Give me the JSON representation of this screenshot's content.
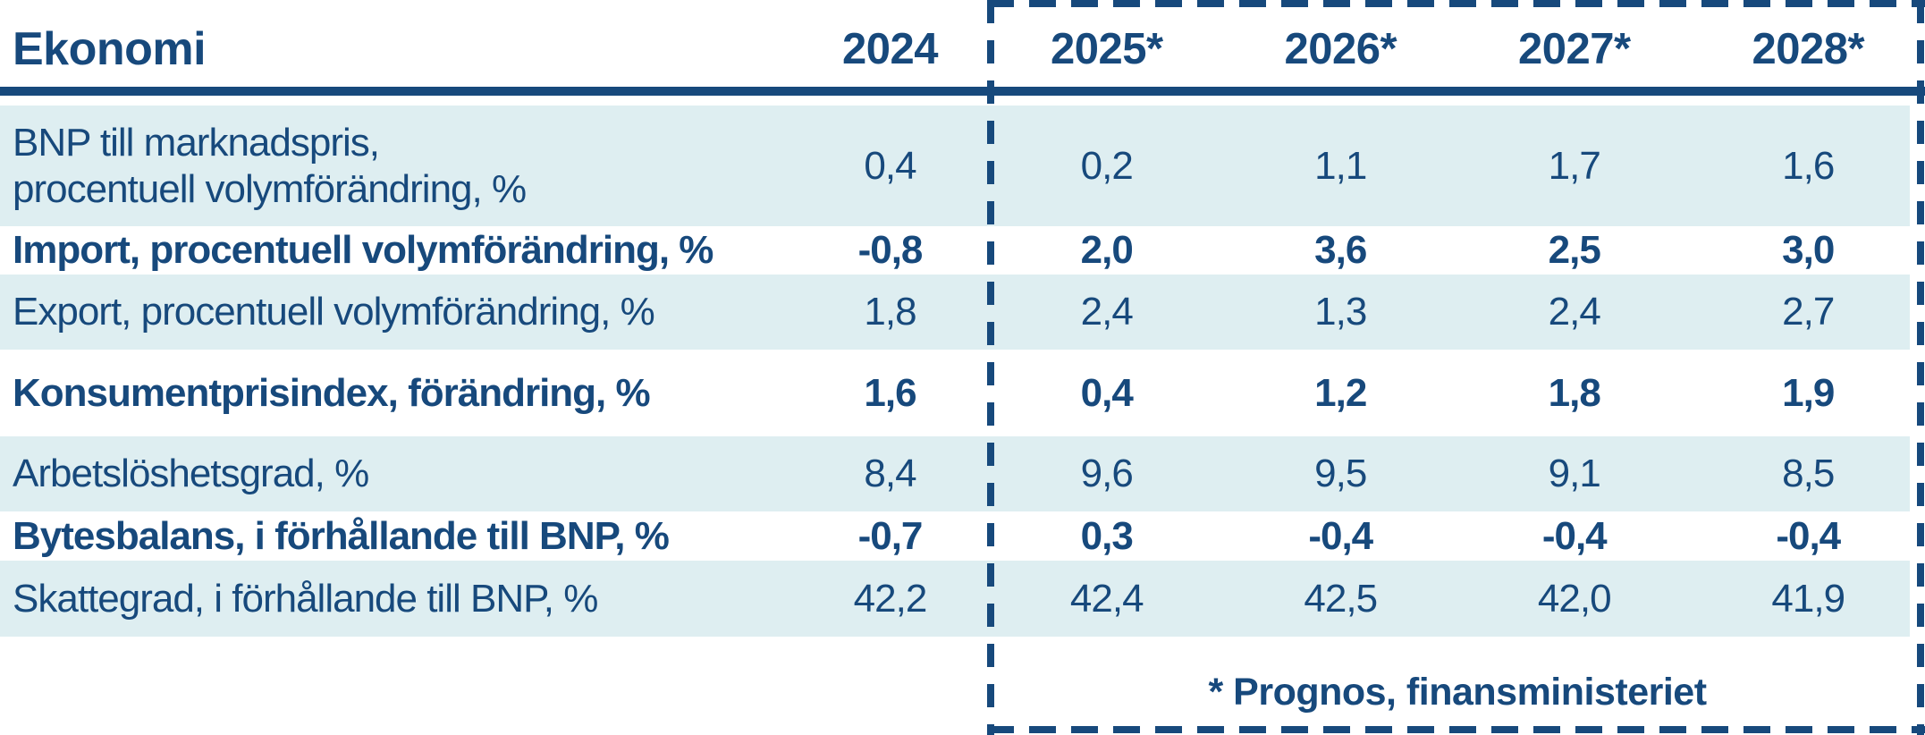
{
  "colors": {
    "navy": "#17497C",
    "light_blue": "#DEEEF1",
    "white": "#FFFFFF"
  },
  "table": {
    "corner_label": "Ekonomi",
    "year_columns": [
      "2024",
      "2025*",
      "2026*",
      "2027*",
      "2028*"
    ],
    "rows": [
      {
        "label_lines": [
          "BNP till marknadspris,",
          "procentuell volymförändring, %"
        ],
        "values": [
          "0,4",
          "0,2",
          "1,1",
          "1,7",
          "1,6"
        ]
      },
      {
        "label_lines": [
          "Import, procentuell volymförändring, %"
        ],
        "values": [
          "-0,8",
          "2,0",
          "3,6",
          "2,5",
          "3,0"
        ]
      },
      {
        "label_lines": [
          "Export, procentuell volymförändring, %"
        ],
        "values": [
          "1,8",
          "2,4",
          "1,3",
          "2,4",
          "2,7"
        ]
      },
      {
        "label_lines": [
          "Konsumentprisindex, förändring, %"
        ],
        "values": [
          "1,6",
          "0,4",
          "1,2",
          "1,8",
          "1,9"
        ]
      },
      {
        "label_lines": [
          "Arbetslöshetsgrad, %"
        ],
        "values": [
          "8,4",
          "9,6",
          "9,5",
          "9,1",
          "8,5"
        ]
      },
      {
        "label_lines": [
          "Bytesbalans, i förhållande till BNP, %"
        ],
        "values": [
          "-0,7",
          "0,3",
          "-0,4",
          "-0,4",
          "-0,4"
        ]
      },
      {
        "label_lines": [
          "Skattegrad, i förhållande till BNP, %"
        ],
        "values": [
          "42,2",
          "42,4",
          "42,5",
          "42,0",
          "41,9"
        ]
      }
    ],
    "footnote": "* Prognos, finansministeriet"
  },
  "chart_data": {
    "type": "table",
    "title": "Ekonomi",
    "columns": [
      "Ekonomi",
      "2024",
      "2025*",
      "2026*",
      "2027*",
      "2028*"
    ],
    "rows": [
      [
        "BNP till marknadspris, procentuell volymförändring, %",
        "0,4",
        "0,2",
        "1,1",
        "1,7",
        "1,6"
      ],
      [
        "Import, procentuell volymförändring, %",
        "-0,8",
        "2,0",
        "3,6",
        "2,5",
        "3,0"
      ],
      [
        "Export, procentuell volymförändring, %",
        "1,8",
        "2,4",
        "1,3",
        "2,4",
        "2,7"
      ],
      [
        "Konsumentprisindex, förändring, %",
        "1,6",
        "0,4",
        "1,2",
        "1,8",
        "1,9"
      ],
      [
        "Arbetslöshetsgrad, %",
        "8,4",
        "9,6",
        "9,5",
        "9,1",
        "8,5"
      ],
      [
        "Bytesbalans, i förhållande till BNP, %",
        "-0,7",
        "0,3",
        "-0,4",
        "-0,4",
        "-0,4"
      ],
      [
        "Skattegrad, i förhållande till BNP, %",
        "42,2",
        "42,4",
        "42,5",
        "42,0",
        "41,9"
      ]
    ],
    "forecast_columns": [
      "2025*",
      "2026*",
      "2027*",
      "2028*"
    ],
    "footnote": "* Prognos, finansministeriet"
  }
}
